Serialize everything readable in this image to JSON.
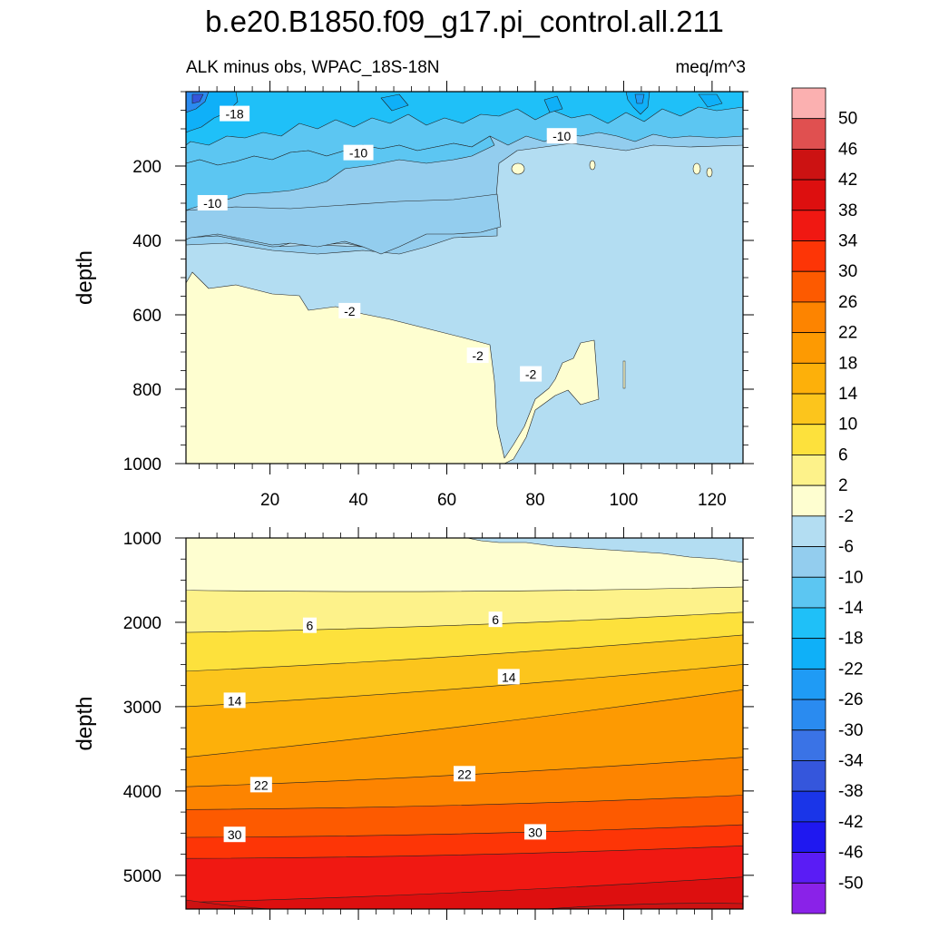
{
  "chart_data": {
    "type": "contour",
    "title": "b.e20.B1850.f09_g17.pi_control.all.211",
    "subtitle": "ALK minus obs, WPAC_18S-18N",
    "units": "meq/m^3",
    "colorbar": {
      "levels": [
        -50,
        -46,
        -42,
        -38,
        -34,
        -30,
        -26,
        -22,
        -18,
        -14,
        -10,
        -6,
        -2,
        2,
        6,
        10,
        14,
        18,
        22,
        26,
        30,
        34,
        38,
        42,
        46,
        50
      ],
      "colors": [
        "#8a22e8",
        "#5a1cf5",
        "#1f18f0",
        "#1a35e8",
        "#3556dc",
        "#3a73e6",
        "#2a8bf0",
        "#1f9bf5",
        "#0fb0f8",
        "#1fc0f8",
        "#5cc6f2",
        "#93cdee",
        "#b3ddf2",
        "#fefed0",
        "#fdf28a",
        "#fde13c",
        "#fcc51c",
        "#fdb00a",
        "#fd9a02",
        "#fd8400",
        "#fd5a00",
        "#fd3506",
        "#f01812",
        "#dd0f0f",
        "#cc1212",
        "#e05050",
        "#fbb0b0"
      ]
    },
    "panels": [
      {
        "name": "upper",
        "ylabel": "depth",
        "xlabel": "",
        "xlim": [
          1,
          127
        ],
        "ylim": [
          0,
          1000
        ],
        "y_inverted": true,
        "xticks": [
          20,
          40,
          60,
          80,
          100,
          120
        ],
        "yticks": [
          200,
          400,
          600,
          800,
          1000
        ],
        "contour_labels": [
          {
            "text": "-18",
            "x": 12,
            "y": 60
          },
          {
            "text": "-10",
            "x": 40,
            "y": 165
          },
          {
            "text": "-10",
            "x": 7,
            "y": 300
          },
          {
            "text": "-10",
            "x": 86,
            "y": 120
          },
          {
            "text": "-2",
            "x": 38,
            "y": 590
          },
          {
            "text": "-2",
            "x": 67,
            "y": 710
          },
          {
            "text": "-2",
            "x": 79,
            "y": 760
          }
        ]
      },
      {
        "name": "lower",
        "ylabel": "depth",
        "xlabel": "",
        "xlim": [
          1,
          127
        ],
        "ylim": [
          1000,
          5400
        ],
        "y_inverted": true,
        "xticks": [],
        "yticks": [
          1000,
          2000,
          3000,
          4000,
          5000
        ],
        "contour_labels": [
          {
            "text": "6",
            "x": 29,
            "y": 2040
          },
          {
            "text": "6",
            "x": 71,
            "y": 1970
          },
          {
            "text": "14",
            "x": 12,
            "y": 2930
          },
          {
            "text": "14",
            "x": 74,
            "y": 2650
          },
          {
            "text": "22",
            "x": 18,
            "y": 3930
          },
          {
            "text": "22",
            "x": 64,
            "y": 3800
          },
          {
            "text": "30",
            "x": 12,
            "y": 4520
          },
          {
            "text": "30",
            "x": 80,
            "y": 4490
          }
        ]
      }
    ]
  }
}
